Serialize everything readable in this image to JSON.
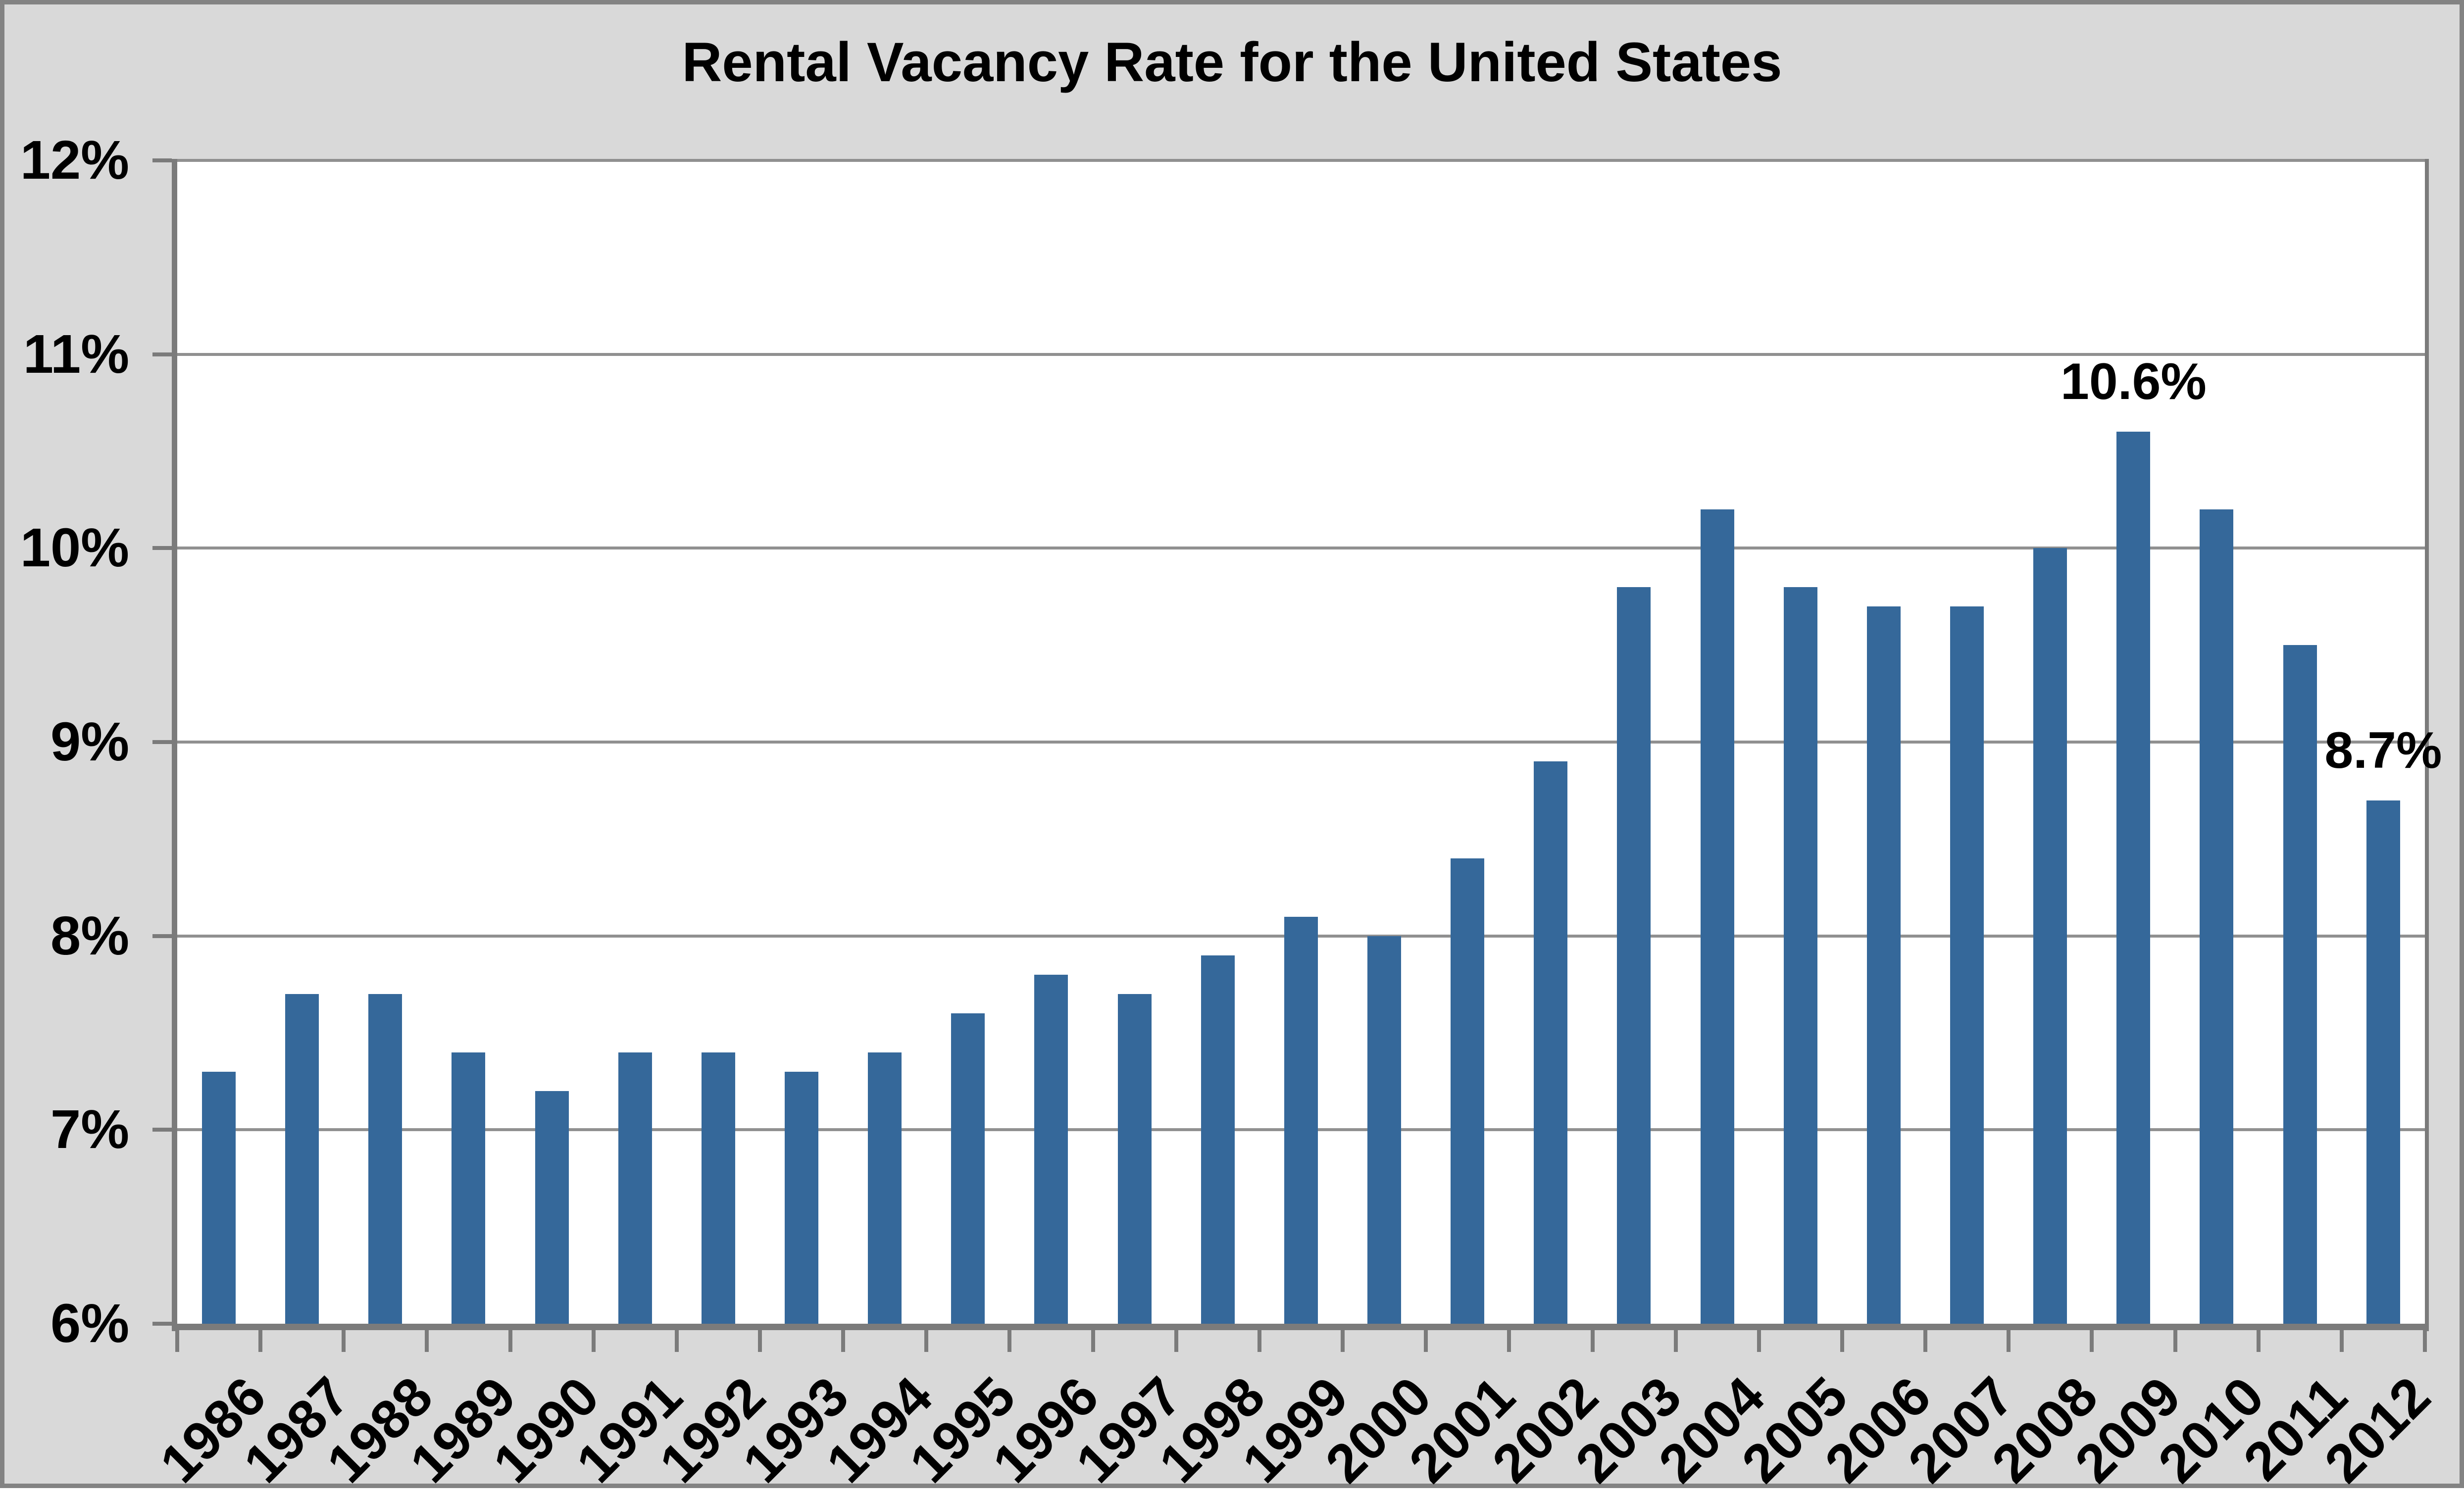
{
  "chart_data": {
    "type": "bar",
    "title": "Rental Vacancy Rate for the United States",
    "categories": [
      "1986",
      "1987",
      "1988",
      "1989",
      "1990",
      "1991",
      "1992",
      "1993",
      "1994",
      "1995",
      "1996",
      "1997",
      "1998",
      "1999",
      "2000",
      "2001",
      "2002",
      "2003",
      "2004",
      "2005",
      "2006",
      "2007",
      "2008",
      "2009",
      "2010",
      "2011",
      "2012"
    ],
    "values": [
      7.3,
      7.7,
      7.7,
      7.4,
      7.2,
      7.4,
      7.4,
      7.3,
      7.4,
      7.6,
      7.8,
      7.7,
      7.9,
      8.1,
      8.0,
      8.4,
      8.9,
      9.8,
      10.2,
      9.8,
      9.7,
      9.7,
      10.0,
      10.6,
      10.2,
      9.5,
      8.7
    ],
    "xlabel": "",
    "ylabel": "",
    "ylim": [
      6,
      12
    ],
    "ytick_step": 1,
    "ytick_labels": [
      "6%",
      "7%",
      "8%",
      "9%",
      "10%",
      "11%",
      "12%"
    ],
    "grid": "horizontal",
    "legend": "none",
    "annotations": [
      {
        "category": "2009",
        "label": "10.6%"
      },
      {
        "category": "2012",
        "label": "8.7%"
      }
    ],
    "colors": {
      "bar": "#35689A",
      "canvas_bg": "#D9D9D9",
      "plot_bg": "#FFFFFF",
      "gridline": "#909090",
      "axis": "#7B7B7B",
      "canvas_border": "#838383",
      "text": "#000000"
    }
  }
}
